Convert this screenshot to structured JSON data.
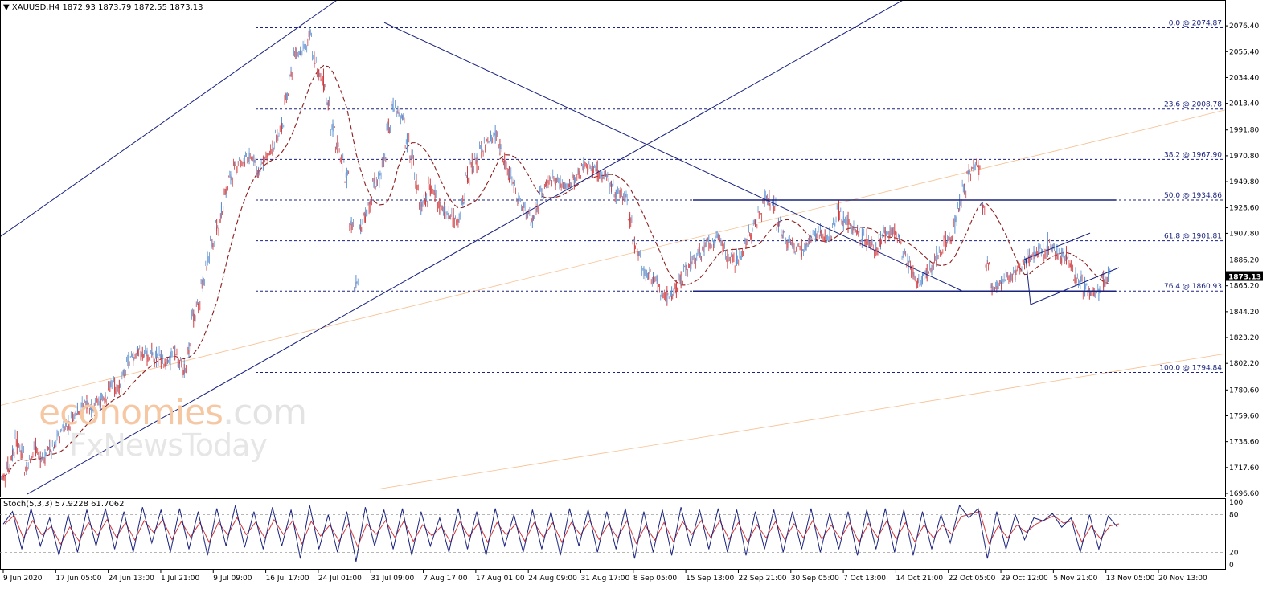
{
  "header": {
    "symbol": "XAUUSD,H4",
    "ohlc": "1872.93 1873.79 1872.55 1873.13",
    "arrow_icon": "triangle-down-icon"
  },
  "indicator": {
    "label": "Stoch(5,3,3) 57.9228 61.7062",
    "levels": [
      80,
      20
    ],
    "scale": [
      "100",
      "80",
      "20",
      "0"
    ]
  },
  "watermark": {
    "line1_a": "economies",
    "line1_b": ".com",
    "line2": "FxNewsToday"
  },
  "colors": {
    "bull": "#5b8fd0",
    "bear": "#d0393d",
    "ma": "#8b1e1e",
    "trend": "#1a237e",
    "fib": "#1a237e",
    "orange": "#f4a460",
    "price_label_bg": "#000000"
  },
  "chart_data": {
    "type": "candlestick",
    "price_axis": {
      "min": 1696.6,
      "max": 2083.0,
      "ticks": [
        "2076.40",
        "2055.40",
        "2034.40",
        "2013.40",
        "1991.80",
        "1970.80",
        "1949.80",
        "1928.60",
        "1907.80",
        "1886.20",
        "1865.20",
        "1844.20",
        "1823.20",
        "1802.20",
        "1780.60",
        "1759.60",
        "1738.60",
        "1717.60",
        "1696.60"
      ],
      "current": "1873.13"
    },
    "time_axis": [
      "9 Jun 2020",
      "17 Jun 05:00",
      "24 Jun 13:00",
      "1 Jul 21:00",
      "9 Jul 09:00",
      "16 Jul 17:00",
      "24 Jul 01:00",
      "31 Jul 09:00",
      "7 Aug 17:00",
      "17 Aug 01:00",
      "24 Aug 09:00",
      "31 Aug 17:00",
      "8 Sep 05:00",
      "15 Sep 13:00",
      "22 Sep 21:00",
      "30 Sep 05:00",
      "7 Oct 13:00",
      "14 Oct 21:00",
      "22 Oct 05:00",
      "29 Oct 12:00",
      "5 Nov 21:00",
      "13 Nov 05:00",
      "20 Nov 13:00"
    ],
    "fib_levels": [
      {
        "pct": 0.0,
        "price": 2074.87,
        "label": "0.0 @ 2074.87"
      },
      {
        "pct": 23.6,
        "price": 2008.78,
        "label": "23.6 @ 2008.78"
      },
      {
        "pct": 38.2,
        "price": 1967.9,
        "label": "38.2 @ 1967.90"
      },
      {
        "pct": 50.0,
        "price": 1934.86,
        "label": "50.0 @ 1934.86"
      },
      {
        "pct": 61.8,
        "price": 1901.81,
        "label": "61.8 @ 1901.81"
      },
      {
        "pct": 76.4,
        "price": 1860.93,
        "label": "76.4 @ 1860.93"
      },
      {
        "pct": 100.0,
        "price": 1794.84,
        "label": "100.0 @ 1794.84"
      }
    ],
    "price_path": [
      [
        0,
        1710
      ],
      [
        3,
        1738
      ],
      [
        5,
        1720
      ],
      [
        7,
        1730
      ],
      [
        9,
        1727
      ],
      [
        11,
        1736
      ],
      [
        13,
        1752
      ],
      [
        15,
        1761
      ],
      [
        17,
        1768
      ],
      [
        19,
        1770
      ],
      [
        21,
        1772
      ],
      [
        23,
        1780
      ],
      [
        25,
        1783
      ],
      [
        27,
        1805
      ],
      [
        29,
        1812
      ],
      [
        31,
        1808
      ],
      [
        33,
        1806
      ],
      [
        35,
        1805
      ],
      [
        37,
        1812
      ],
      [
        38,
        1805
      ],
      [
        39,
        1798
      ],
      [
        41,
        1838
      ],
      [
        43,
        1870
      ],
      [
        45,
        1900
      ],
      [
        47,
        1925
      ],
      [
        49,
        1955
      ],
      [
        51,
        1965
      ],
      [
        53,
        1972
      ],
      [
        55,
        1962
      ],
      [
        56,
        1968
      ],
      [
        58,
        1975
      ],
      [
        60,
        1995
      ],
      [
        62,
        2040
      ],
      [
        63,
        2050
      ],
      [
        65,
        2061
      ],
      [
        66,
        2070
      ],
      [
        67,
        2045
      ],
      [
        69,
        2030
      ],
      [
        70,
        2010
      ],
      [
        72,
        1980
      ],
      [
        74,
        1955
      ],
      [
        76,
        1868
      ],
      [
        77,
        1910
      ],
      [
        79,
        1935
      ],
      [
        81,
        1955
      ],
      [
        83,
        1990
      ],
      [
        84,
        2012
      ],
      [
        86,
        2000
      ],
      [
        88,
        1968
      ],
      [
        90,
        1928
      ],
      [
        92,
        1945
      ],
      [
        94,
        1930
      ],
      [
        96,
        1922
      ],
      [
        98,
        1915
      ],
      [
        100,
        1955
      ],
      [
        102,
        1968
      ],
      [
        104,
        1980
      ],
      [
        106,
        1990
      ],
      [
        108,
        1962
      ],
      [
        110,
        1945
      ],
      [
        112,
        1930
      ],
      [
        114,
        1920
      ],
      [
        116,
        1940
      ],
      [
        118,
        1955
      ],
      [
        120,
        1945
      ],
      [
        122,
        1948
      ],
      [
        124,
        1955
      ],
      [
        126,
        1966
      ],
      [
        128,
        1960
      ],
      [
        130,
        1952
      ],
      [
        132,
        1940
      ],
      [
        134,
        1935
      ],
      [
        136,
        1900
      ],
      [
        138,
        1880
      ],
      [
        140,
        1870
      ],
      [
        142,
        1858
      ],
      [
        144,
        1855
      ],
      [
        146,
        1870
      ],
      [
        148,
        1885
      ],
      [
        150,
        1892
      ],
      [
        152,
        1900
      ],
      [
        154,
        1908
      ],
      [
        156,
        1890
      ],
      [
        158,
        1885
      ],
      [
        160,
        1900
      ],
      [
        162,
        1915
      ],
      [
        164,
        1935
      ],
      [
        166,
        1928
      ],
      [
        168,
        1905
      ],
      [
        170,
        1900
      ],
      [
        172,
        1892
      ],
      [
        174,
        1903
      ],
      [
        176,
        1910
      ],
      [
        178,
        1905
      ],
      [
        180,
        1925
      ],
      [
        182,
        1918
      ],
      [
        184,
        1910
      ],
      [
        186,
        1900
      ],
      [
        188,
        1895
      ],
      [
        190,
        1908
      ],
      [
        192,
        1908
      ],
      [
        194,
        1892
      ],
      [
        196,
        1872
      ],
      [
        198,
        1870
      ],
      [
        200,
        1882
      ],
      [
        202,
        1895
      ],
      [
        204,
        1905
      ],
      [
        206,
        1930
      ],
      [
        208,
        1955
      ],
      [
        209,
        1965
      ],
      [
        210,
        1962
      ],
      [
        211,
        1930
      ],
      [
        212,
        1880
      ],
      [
        213,
        1860
      ],
      [
        215,
        1870
      ],
      [
        217,
        1875
      ],
      [
        219,
        1880
      ],
      [
        221,
        1885
      ],
      [
        223,
        1892
      ],
      [
        225,
        1898
      ],
      [
        227,
        1893
      ],
      [
        229,
        1885
      ],
      [
        231,
        1875
      ],
      [
        233,
        1865
      ],
      [
        235,
        1858
      ],
      [
        237,
        1868
      ],
      [
        238,
        1873
      ]
    ],
    "stoch_path": [
      [
        0,
        65
      ],
      [
        2,
        85
      ],
      [
        4,
        25
      ],
      [
        6,
        90
      ],
      [
        8,
        30
      ],
      [
        10,
        75
      ],
      [
        12,
        15
      ],
      [
        14,
        80
      ],
      [
        16,
        20
      ],
      [
        18,
        88
      ],
      [
        20,
        30
      ],
      [
        22,
        90
      ],
      [
        24,
        25
      ],
      [
        26,
        85
      ],
      [
        28,
        20
      ],
      [
        30,
        92
      ],
      [
        32,
        35
      ],
      [
        34,
        88
      ],
      [
        36,
        20
      ],
      [
        38,
        90
      ],
      [
        40,
        25
      ],
      [
        42,
        85
      ],
      [
        44,
        15
      ],
      [
        46,
        90
      ],
      [
        48,
        30
      ],
      [
        50,
        95
      ],
      [
        52,
        28
      ],
      [
        54,
        85
      ],
      [
        56,
        25
      ],
      [
        58,
        92
      ],
      [
        60,
        30
      ],
      [
        62,
        88
      ],
      [
        64,
        10
      ],
      [
        66,
        95
      ],
      [
        68,
        25
      ],
      [
        70,
        80
      ],
      [
        72,
        20
      ],
      [
        74,
        85
      ],
      [
        76,
        5
      ],
      [
        78,
        92
      ],
      [
        80,
        30
      ],
      [
        82,
        88
      ],
      [
        84,
        25
      ],
      [
        86,
        90
      ],
      [
        88,
        15
      ],
      [
        90,
        85
      ],
      [
        92,
        30
      ],
      [
        94,
        75
      ],
      [
        96,
        20
      ],
      [
        98,
        90
      ],
      [
        100,
        25
      ],
      [
        102,
        85
      ],
      [
        104,
        15
      ],
      [
        106,
        90
      ],
      [
        108,
        30
      ],
      [
        110,
        80
      ],
      [
        112,
        20
      ],
      [
        114,
        88
      ],
      [
        116,
        25
      ],
      [
        118,
        85
      ],
      [
        120,
        15
      ],
      [
        122,
        90
      ],
      [
        124,
        30
      ],
      [
        126,
        88
      ],
      [
        128,
        20
      ],
      [
        130,
        85
      ],
      [
        132,
        25
      ],
      [
        134,
        90
      ],
      [
        136,
        10
      ],
      [
        138,
        85
      ],
      [
        140,
        20
      ],
      [
        142,
        88
      ],
      [
        144,
        15
      ],
      [
        146,
        92
      ],
      [
        148,
        30
      ],
      [
        150,
        88
      ],
      [
        152,
        25
      ],
      [
        154,
        90
      ],
      [
        156,
        20
      ],
      [
        158,
        88
      ],
      [
        160,
        15
      ],
      [
        162,
        85
      ],
      [
        164,
        25
      ],
      [
        166,
        88
      ],
      [
        168,
        20
      ],
      [
        170,
        85
      ],
      [
        172,
        25
      ],
      [
        174,
        90
      ],
      [
        176,
        20
      ],
      [
        178,
        82
      ],
      [
        180,
        25
      ],
      [
        182,
        85
      ],
      [
        184,
        15
      ],
      [
        186,
        88
      ],
      [
        188,
        25
      ],
      [
        190,
        90
      ],
      [
        192,
        20
      ],
      [
        194,
        88
      ],
      [
        196,
        15
      ],
      [
        198,
        85
      ],
      [
        200,
        25
      ],
      [
        202,
        80
      ],
      [
        204,
        35
      ],
      [
        206,
        95
      ],
      [
        208,
        75
      ],
      [
        210,
        90
      ],
      [
        212,
        10
      ],
      [
        214,
        85
      ],
      [
        216,
        25
      ],
      [
        218,
        80
      ],
      [
        220,
        40
      ],
      [
        222,
        75
      ],
      [
        224,
        70
      ],
      [
        226,
        82
      ],
      [
        228,
        60
      ],
      [
        230,
        75
      ],
      [
        232,
        20
      ],
      [
        234,
        80
      ],
      [
        236,
        25
      ],
      [
        238,
        78
      ],
      [
        240,
        60
      ]
    ]
  }
}
